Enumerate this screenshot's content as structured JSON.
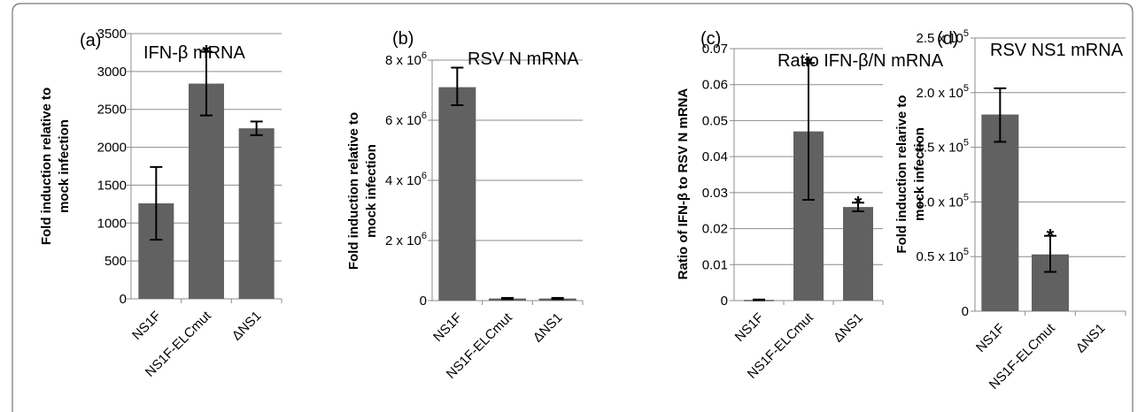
{
  "colors": {
    "bar": "#616161",
    "grid": "#8c8c8c",
    "frame": "#555555"
  },
  "chart_data": [
    {
      "type": "bar",
      "panel": "(a)",
      "title": "IFN-β mRNA",
      "ylabel": [
        "Fold induction relative to",
        "mock infection"
      ],
      "categories": [
        "NS1F",
        "NS1F-ELCmut",
        "ΔNS1"
      ],
      "values": [
        1260,
        2840,
        2250
      ],
      "error_low": [
        780,
        2420,
        2160
      ],
      "error_high": [
        1740,
        3260,
        2340
      ],
      "significance": [
        "",
        "*",
        ""
      ],
      "ylim": [
        0,
        3500
      ],
      "yticks": [
        0,
        500,
        1000,
        1500,
        2000,
        2500,
        3000,
        3500
      ],
      "ytick_labels": [
        "0",
        "500",
        "1000",
        "1500",
        "2000",
        "2500",
        "3000",
        "3500"
      ],
      "grid": true
    },
    {
      "type": "bar",
      "panel": "(b)",
      "title": "RSV N mRNA",
      "ylabel": [
        "Fold induction relative to",
        "mock infection"
      ],
      "categories": [
        "NS1F",
        "NS1F-ELCmut",
        "ΔNS1"
      ],
      "values": [
        7100000,
        70000,
        70000
      ],
      "error_low": [
        6500000,
        50000,
        50000
      ],
      "error_high": [
        7750000,
        90000,
        90000
      ],
      "significance": [
        "",
        "",
        ""
      ],
      "ylim": [
        0,
        8000000
      ],
      "yticks": [
        0,
        2000000,
        4000000,
        6000000,
        8000000
      ],
      "ytick_labels": [
        "0",
        "2 x 10",
        "4 x 10",
        "6 x 10",
        "8 x 10"
      ],
      "ytick_exponents": [
        "",
        "6",
        "6",
        "6",
        "6"
      ],
      "grid": true
    },
    {
      "type": "bar",
      "panel": "(c)",
      "title": "Ratio IFN-β/N mRNA",
      "ylabel": [
        "Ratio of IFN-β to RSV N mRNA"
      ],
      "categories": [
        "NS1F",
        "NS1F-ELCmut",
        "ΔNS1"
      ],
      "values": [
        0.0002,
        0.047,
        0.026
      ],
      "error_low": [
        0.0001,
        0.028,
        0.0248
      ],
      "error_high": [
        0.0003,
        0.066,
        0.0272
      ],
      "significance": [
        "",
        "*",
        "*"
      ],
      "ylim": [
        0,
        0.07
      ],
      "yticks": [
        0,
        0.01,
        0.02,
        0.03,
        0.04,
        0.05,
        0.06,
        0.07
      ],
      "ytick_labels": [
        "0",
        "0.01",
        "0.02",
        "0.03",
        "0.04",
        "0.05",
        "0.06",
        "0.07"
      ],
      "grid": true
    },
    {
      "type": "bar",
      "panel": "(d)",
      "title": "RSV NS1 mRNA",
      "ylabel": [
        "Fold induction relarive to",
        "mock infection"
      ],
      "categories": [
        "NS1F",
        "NS1F-ELCmut",
        "ΔNS1"
      ],
      "values": [
        180000,
        52000,
        0
      ],
      "error_low": [
        155000,
        36000,
        null
      ],
      "error_high": [
        204000,
        69000,
        null
      ],
      "significance": [
        "",
        "*",
        ""
      ],
      "ylim": [
        0,
        250000
      ],
      "yticks": [
        0,
        50000,
        100000,
        150000,
        200000,
        250000
      ],
      "ytick_labels": [
        "0",
        "0.5 x 10",
        "1.0 x 10",
        "1.5 x 10",
        "2.0 x 10",
        "2.5 x 10"
      ],
      "ytick_exponents": [
        "",
        "5",
        "5",
        "5",
        "5",
        "5"
      ],
      "grid": true
    }
  ]
}
